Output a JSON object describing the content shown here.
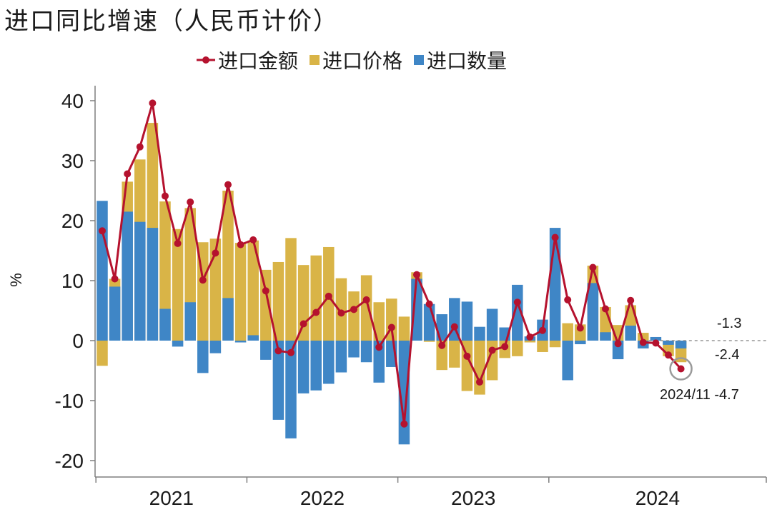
{
  "chart_data": {
    "type": "bar+line",
    "title": "进口同比增速（人民币计价）",
    "ylabel": "%",
    "ylim": [
      -20,
      40
    ],
    "yticks": [
      40,
      30,
      20,
      10,
      0,
      -10,
      -20
    ],
    "year_labels": [
      "2021",
      "2022",
      "2023",
      "2024"
    ],
    "months_first": "2021-01",
    "months_last": "2024-11",
    "series": [
      {
        "name": "进口金额",
        "type": "line",
        "color": "#B5122E",
        "values": [
          18.3,
          10.3,
          27.8,
          32.3,
          39.6,
          24.1,
          16.2,
          23.1,
          10.1,
          14.6,
          26.0,
          16.0,
          16.8,
          8.3,
          -1.7,
          -2.0,
          2.8,
          4.7,
          7.4,
          4.6,
          5.2,
          6.8,
          -1.1,
          2.2,
          -13.9,
          11.0,
          6.1,
          -0.8,
          2.3,
          -2.6,
          -6.9,
          -1.6,
          -1.0,
          6.4,
          0.6,
          1.7,
          17.2,
          6.8,
          2.1,
          12.2,
          5.3,
          -0.5,
          6.7,
          -0.3,
          -0.4,
          -2.4,
          -4.7
        ]
      },
      {
        "name": "进口价格",
        "type": "bar",
        "color": "#D9B447",
        "values": [
          -4.2,
          10.3,
          26.5,
          30.2,
          36.3,
          23.2,
          18.6,
          22.1,
          16.4,
          17.0,
          25.0,
          16.3,
          16.7,
          11.8,
          13.1,
          17.1,
          12.6,
          14.2,
          15.6,
          10.4,
          8.2,
          10.9,
          6.4,
          7.0,
          4.0,
          11.4,
          -0.2,
          -4.9,
          -4.5,
          -8.4,
          -9.0,
          -6.6,
          -2.9,
          -2.6,
          -0.3,
          -1.9,
          -1.1,
          2.9,
          2.7,
          12.5,
          5.6,
          2.6,
          5.9,
          1.3,
          0.2,
          -2.6,
          -3.6
        ]
      },
      {
        "name": "进口数量",
        "type": "bar",
        "color": "#3F86C6",
        "values": [
          23.3,
          9.0,
          21.5,
          19.8,
          18.8,
          5.3,
          -1.0,
          6.4,
          -5.4,
          -2.1,
          7.1,
          -0.3,
          0.9,
          -3.2,
          -13.2,
          -16.3,
          -8.8,
          -8.3,
          -7.2,
          -5.3,
          -2.8,
          -3.6,
          -7.0,
          -4.4,
          -17.3,
          10.3,
          6.1,
          4.4,
          7.1,
          6.5,
          2.3,
          5.3,
          2.2,
          9.3,
          0.7,
          3.5,
          18.8,
          -6.6,
          -0.6,
          9.6,
          1.4,
          -3.1,
          2.5,
          -1.3,
          0.6,
          -0.7,
          -1.3
        ]
      }
    ],
    "annotations": [
      "-1.3",
      "-2.4",
      "2024/11 -4.7"
    ],
    "legend_position": "top",
    "grid": false
  }
}
